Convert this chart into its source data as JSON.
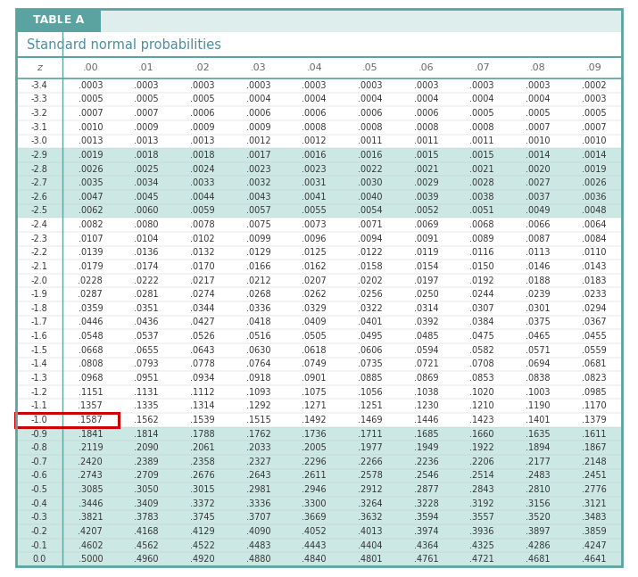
{
  "title_tab": "TABLE A",
  "subtitle": "Standard normal probabilities",
  "col_headers": [
    "z",
    ".00",
    ".01",
    ".02",
    ".03",
    ".04",
    ".05",
    ".06",
    ".07",
    ".08",
    ".09"
  ],
  "rows": [
    [
      "-3.4",
      ".0003",
      ".0003",
      ".0003",
      ".0003",
      ".0003",
      ".0003",
      ".0003",
      ".0003",
      ".0003",
      ".0002"
    ],
    [
      "-3.3",
      ".0005",
      ".0005",
      ".0005",
      ".0004",
      ".0004",
      ".0004",
      ".0004",
      ".0004",
      ".0004",
      ".0003"
    ],
    [
      "-3.2",
      ".0007",
      ".0007",
      ".0006",
      ".0006",
      ".0006",
      ".0006",
      ".0006",
      ".0005",
      ".0005",
      ".0005"
    ],
    [
      "-3.1",
      ".0010",
      ".0009",
      ".0009",
      ".0009",
      ".0008",
      ".0008",
      ".0008",
      ".0008",
      ".0007",
      ".0007"
    ],
    [
      "-3.0",
      ".0013",
      ".0013",
      ".0013",
      ".0012",
      ".0012",
      ".0011",
      ".0011",
      ".0011",
      ".0010",
      ".0010"
    ],
    [
      "-2.9",
      ".0019",
      ".0018",
      ".0018",
      ".0017",
      ".0016",
      ".0016",
      ".0015",
      ".0015",
      ".0014",
      ".0014"
    ],
    [
      "-2.8",
      ".0026",
      ".0025",
      ".0024",
      ".0023",
      ".0023",
      ".0022",
      ".0021",
      ".0021",
      ".0020",
      ".0019"
    ],
    [
      "-2.7",
      ".0035",
      ".0034",
      ".0033",
      ".0032",
      ".0031",
      ".0030",
      ".0029",
      ".0028",
      ".0027",
      ".0026"
    ],
    [
      "-2.6",
      ".0047",
      ".0045",
      ".0044",
      ".0043",
      ".0041",
      ".0040",
      ".0039",
      ".0038",
      ".0037",
      ".0036"
    ],
    [
      "-2.5",
      ".0062",
      ".0060",
      ".0059",
      ".0057",
      ".0055",
      ".0054",
      ".0052",
      ".0051",
      ".0049",
      ".0048"
    ],
    [
      "-2.4",
      ".0082",
      ".0080",
      ".0078",
      ".0075",
      ".0073",
      ".0071",
      ".0069",
      ".0068",
      ".0066",
      ".0064"
    ],
    [
      "-2.3",
      ".0107",
      ".0104",
      ".0102",
      ".0099",
      ".0096",
      ".0094",
      ".0091",
      ".0089",
      ".0087",
      ".0084"
    ],
    [
      "-2.2",
      ".0139",
      ".0136",
      ".0132",
      ".0129",
      ".0125",
      ".0122",
      ".0119",
      ".0116",
      ".0113",
      ".0110"
    ],
    [
      "-2.1",
      ".0179",
      ".0174",
      ".0170",
      ".0166",
      ".0162",
      ".0158",
      ".0154",
      ".0150",
      ".0146",
      ".0143"
    ],
    [
      "-2.0",
      ".0228",
      ".0222",
      ".0217",
      ".0212",
      ".0207",
      ".0202",
      ".0197",
      ".0192",
      ".0188",
      ".0183"
    ],
    [
      "-1.9",
      ".0287",
      ".0281",
      ".0274",
      ".0268",
      ".0262",
      ".0256",
      ".0250",
      ".0244",
      ".0239",
      ".0233"
    ],
    [
      "-1.8",
      ".0359",
      ".0351",
      ".0344",
      ".0336",
      ".0329",
      ".0322",
      ".0314",
      ".0307",
      ".0301",
      ".0294"
    ],
    [
      "-1.7",
      ".0446",
      ".0436",
      ".0427",
      ".0418",
      ".0409",
      ".0401",
      ".0392",
      ".0384",
      ".0375",
      ".0367"
    ],
    [
      "-1.6",
      ".0548",
      ".0537",
      ".0526",
      ".0516",
      ".0505",
      ".0495",
      ".0485",
      ".0475",
      ".0465",
      ".0455"
    ],
    [
      "-1.5",
      ".0668",
      ".0655",
      ".0643",
      ".0630",
      ".0618",
      ".0606",
      ".0594",
      ".0582",
      ".0571",
      ".0559"
    ],
    [
      "-1.4",
      ".0808",
      ".0793",
      ".0778",
      ".0764",
      ".0749",
      ".0735",
      ".0721",
      ".0708",
      ".0694",
      ".0681"
    ],
    [
      "-1.3",
      ".0968",
      ".0951",
      ".0934",
      ".0918",
      ".0901",
      ".0885",
      ".0869",
      ".0853",
      ".0838",
      ".0823"
    ],
    [
      "-1.2",
      ".1151",
      ".1131",
      ".1112",
      ".1093",
      ".1075",
      ".1056",
      ".1038",
      ".1020",
      ".1003",
      ".0985"
    ],
    [
      "-1.1",
      ".1357",
      ".1335",
      ".1314",
      ".1292",
      ".1271",
      ".1251",
      ".1230",
      ".1210",
      ".1190",
      ".1170"
    ],
    [
      "-1.0",
      ".1587",
      ".1562",
      ".1539",
      ".1515",
      ".1492",
      ".1469",
      ".1446",
      ".1423",
      ".1401",
      ".1379"
    ],
    [
      "-0.9",
      ".1841",
      ".1814",
      ".1788",
      ".1762",
      ".1736",
      ".1711",
      ".1685",
      ".1660",
      ".1635",
      ".1611"
    ],
    [
      "-0.8",
      ".2119",
      ".2090",
      ".2061",
      ".2033",
      ".2005",
      ".1977",
      ".1949",
      ".1922",
      ".1894",
      ".1867"
    ],
    [
      "-0.7",
      ".2420",
      ".2389",
      ".2358",
      ".2327",
      ".2296",
      ".2266",
      ".2236",
      ".2206",
      ".2177",
      ".2148"
    ],
    [
      "-0.6",
      ".2743",
      ".2709",
      ".2676",
      ".2643",
      ".2611",
      ".2578",
      ".2546",
      ".2514",
      ".2483",
      ".2451"
    ],
    [
      "-0.5",
      ".3085",
      ".3050",
      ".3015",
      ".2981",
      ".2946",
      ".2912",
      ".2877",
      ".2843",
      ".2810",
      ".2776"
    ],
    [
      "-0.4",
      ".3446",
      ".3409",
      ".3372",
      ".3336",
      ".3300",
      ".3264",
      ".3228",
      ".3192",
      ".3156",
      ".3121"
    ],
    [
      "-0.3",
      ".3821",
      ".3783",
      ".3745",
      ".3707",
      ".3669",
      ".3632",
      ".3594",
      ".3557",
      ".3520",
      ".3483"
    ],
    [
      "-0.2",
      ".4207",
      ".4168",
      ".4129",
      ".4090",
      ".4052",
      ".4013",
      ".3974",
      ".3936",
      ".3897",
      ".3859"
    ],
    [
      "-0.1",
      ".4602",
      ".4562",
      ".4522",
      ".4483",
      ".4443",
      ".4404",
      ".4364",
      ".4325",
      ".4286",
      ".4247"
    ],
    [
      "0.0",
      ".5000",
      ".4960",
      ".4920",
      ".4880",
      ".4840",
      ".4801",
      ".4761",
      ".4721",
      ".4681",
      ".4641"
    ]
  ],
  "highlight_row": 24,
  "highlight_box_color": "#cc0000",
  "shaded_rows_green": [
    5,
    6,
    7,
    8,
    9,
    25,
    26,
    27,
    28,
    29,
    30,
    31,
    32,
    33,
    34
  ],
  "color_green_light": "#cce8e4",
  "color_white": "#ffffff",
  "color_header_bg": "#5ba3a0",
  "color_tab_text": "#ffffff",
  "color_subtitle_text": "#4a90a4",
  "color_border": "#5ba3a0",
  "color_text": "#333333",
  "color_col_header_text": "#666666"
}
